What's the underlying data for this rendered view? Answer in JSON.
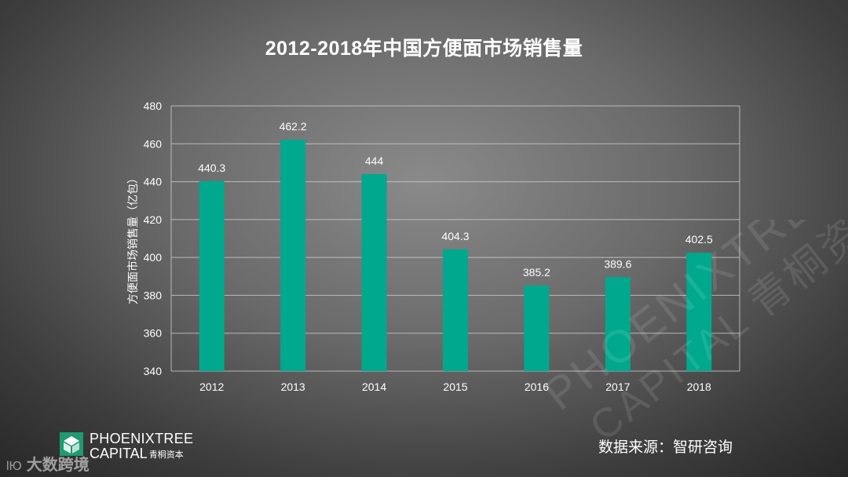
{
  "title": "2012-2018年中国方便面市场销售量",
  "source": "数据来源：智研咨询",
  "logo": {
    "name": "PHOENIXTREE",
    "sub": "CAPITAL",
    "sub_cn": "青桐资本",
    "watermark_line1": "PHOENIXTREE",
    "watermark_line2": "CAPITAL 青桐资本"
  },
  "brand": {
    "glyph": "lЮ",
    "text": "大数跨境"
  },
  "colors": {
    "bar": "#00a88e",
    "grid": "#c8c8c8",
    "text": "#ffffff"
  },
  "chart_data": {
    "type": "bar",
    "categories": [
      "2012",
      "2013",
      "2014",
      "2015",
      "2016",
      "2017",
      "2018"
    ],
    "values": [
      440.3,
      462.2,
      444,
      404.3,
      385.2,
      389.6,
      402.5
    ],
    "data_labels": [
      "440.3",
      "462.2",
      "444",
      "404.3",
      "385.2",
      "389.6",
      "402.5"
    ],
    "ylabel": "方便面市场销售量（亿包）",
    "xlabel": "",
    "ylim": [
      340,
      480
    ],
    "yticks": [
      340,
      360,
      380,
      400,
      420,
      440,
      460,
      480
    ],
    "grid": true,
    "legend": "none"
  }
}
